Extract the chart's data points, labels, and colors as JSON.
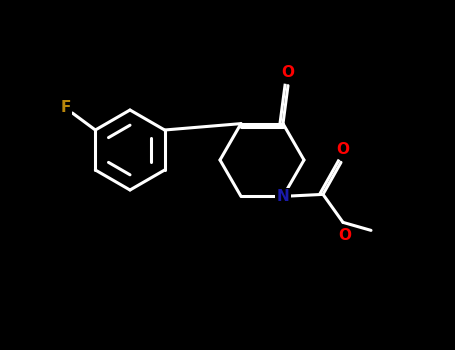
{
  "background": "#000000",
  "bond_color": "#ffffff",
  "bond_width": 2.2,
  "atom_colors": {
    "O": "#ff0000",
    "N": "#1a1aaa",
    "F": "#b8860b",
    "C": "#ffffff"
  },
  "font_size_atom": 11,
  "figsize": [
    4.55,
    3.5
  ],
  "dpi": 100,
  "xlim": [
    0,
    4.55
  ],
  "ylim": [
    0,
    3.5
  ]
}
